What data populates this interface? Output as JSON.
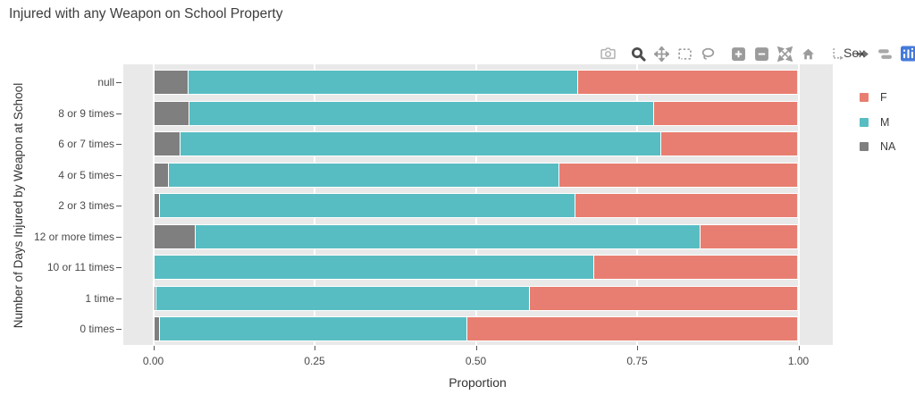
{
  "title": "Injured with any Weapon on School Property",
  "toolbar": {
    "icons": [
      "download-camera",
      "zoom",
      "pan",
      "box-select",
      "lasso-select",
      "zoom-in",
      "zoom-out",
      "autoscale",
      "reset-axes-home",
      "toggle-spikelines",
      "hover-closest",
      "hover-compare",
      "plotly-logo"
    ],
    "logo_color": "#447ADB"
  },
  "legend": {
    "title": "Sex",
    "entries": [
      {
        "label": "F",
        "color": "#E87E71"
      },
      {
        "label": "M",
        "color": "#58BDC3"
      },
      {
        "label": "NA",
        "color": "#7F7F7F"
      }
    ]
  },
  "colors": {
    "plot_background": "#E9E9E9",
    "gridline": "#FFFFFF",
    "f_series": "#E87E71",
    "m_series": "#58BDC3",
    "na_series": "#7F7F7F"
  },
  "chart_data": {
    "type": "bar",
    "orientation": "horizontal",
    "stacked": true,
    "title": "Injured with any Weapon on School Property",
    "xlabel": "Proportion",
    "ylabel": "Number of Days Injured by Weapon at School",
    "legend_title": "Sex",
    "legend_position": "right",
    "grid": true,
    "xlim": [
      -0.046,
      1.053
    ],
    "x_ticks": [
      "0.00",
      "0.25",
      "0.50",
      "0.75",
      "1.00"
    ],
    "categories": [
      "null",
      "8 or 9 times",
      "6 or 7 times",
      "4 or 5 times",
      "2 or 3 times",
      "12 or more times",
      "10 or 11 times",
      "1 time",
      "0 times"
    ],
    "series": [
      {
        "name": "NA",
        "color": "#7F7F7F",
        "values": [
          0.052,
          0.054,
          0.04,
          0.021,
          0.008,
          0.063,
          0.0,
          0.002,
          0.007
        ]
      },
      {
        "name": "M",
        "color": "#58BDC3",
        "values": [
          0.605,
          0.722,
          0.747,
          0.608,
          0.645,
          0.785,
          0.683,
          0.581,
          0.479
        ]
      },
      {
        "name": "F",
        "color": "#E87E71",
        "values": [
          0.343,
          0.224,
          0.213,
          0.371,
          0.347,
          0.152,
          0.317,
          0.417,
          0.514
        ]
      }
    ]
  }
}
